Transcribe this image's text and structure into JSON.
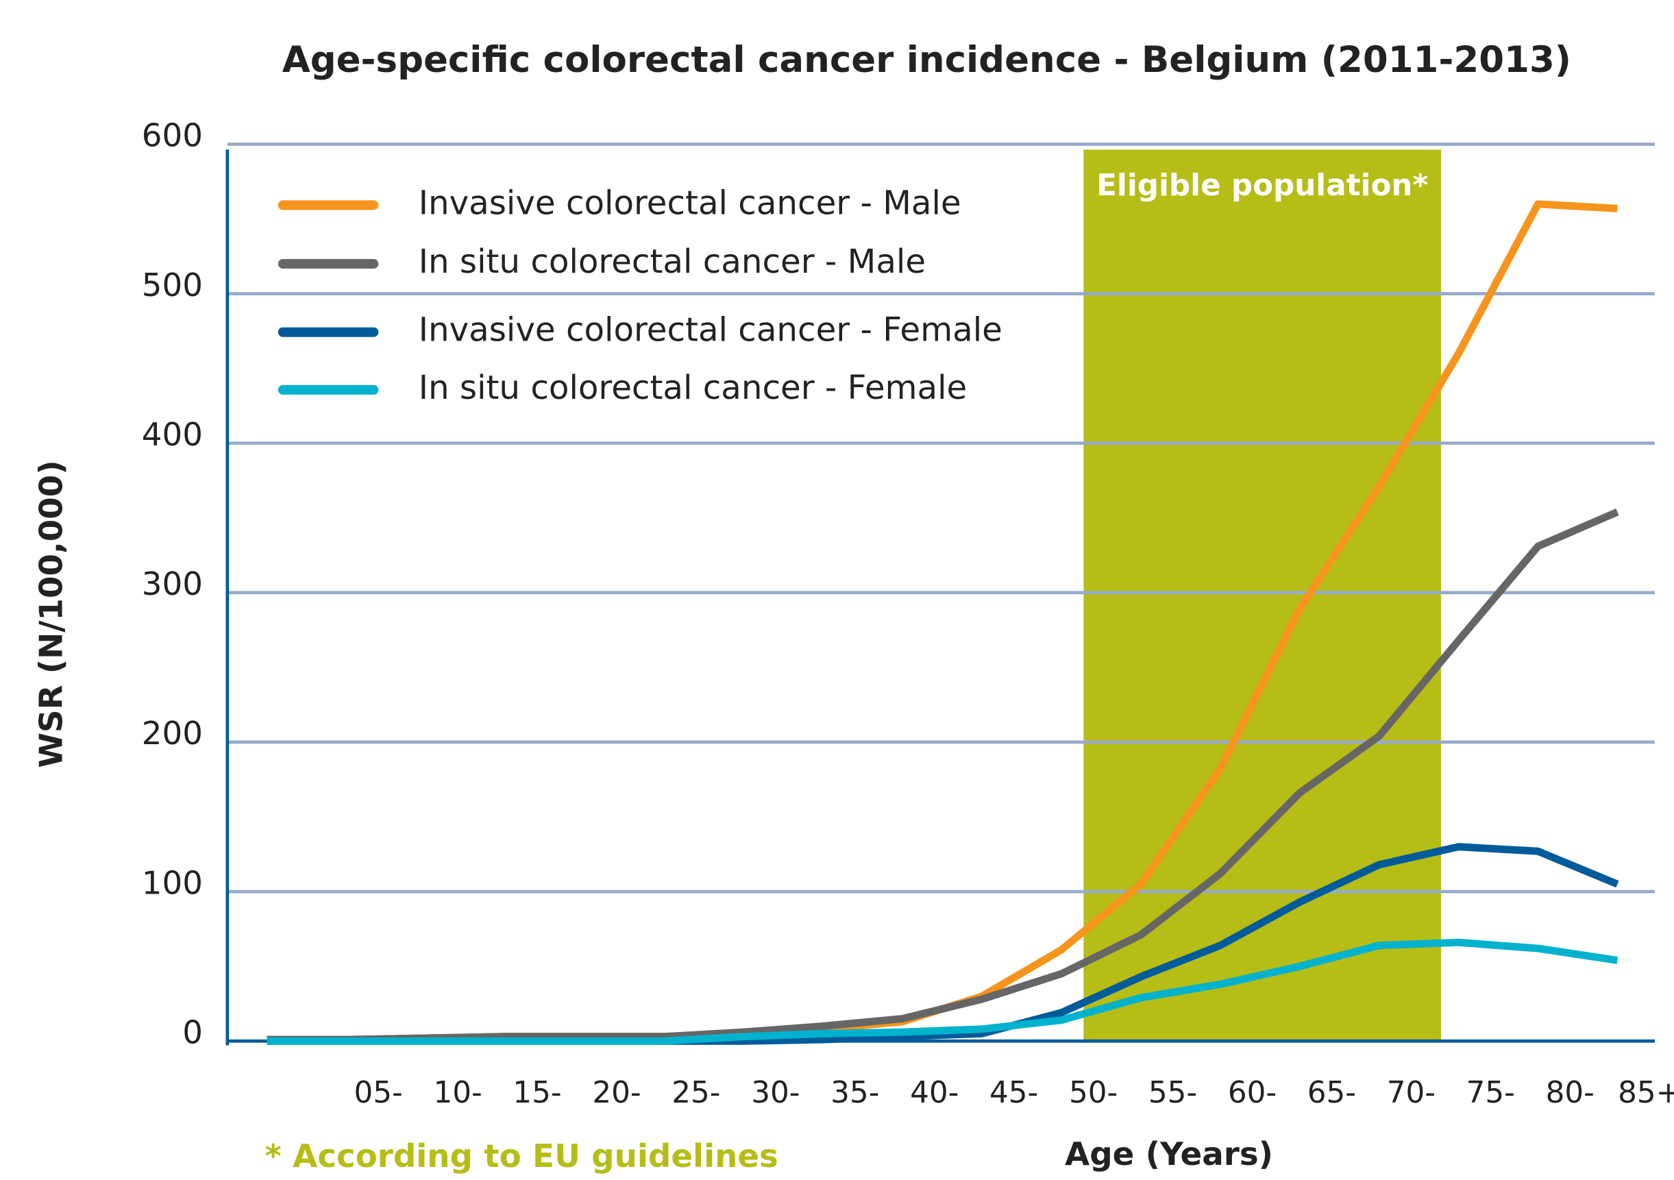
{
  "chart_data": {
    "type": "line",
    "title": "Age-specific colorectal cancer incidence - Belgium (2011-2013)",
    "xlabel": "Age (Years)",
    "ylabel": "WSR (N/100,000)",
    "categories": [
      null,
      "05-",
      "10-",
      "15-",
      "20-",
      "25-",
      "30-",
      "35-",
      "40-",
      "45-",
      "50-",
      "55-",
      "60-",
      "65-",
      "70-",
      "75-",
      "80-",
      "85+"
    ],
    "series": [
      {
        "name": "Invasive colorectal cancer - Male",
        "color": "#f7941d",
        "values": [
          1,
          1,
          2,
          3,
          3,
          3,
          5,
          8,
          13,
          30,
          61,
          105,
          182,
          289,
          371,
          460,
          560,
          557
        ]
      },
      {
        "name": "In situ colorectal cancer - Male",
        "color": "#666666",
        "values": [
          1,
          1,
          2,
          3,
          3,
          3,
          6,
          10,
          15,
          28,
          45,
          71,
          112,
          166,
          204,
          268,
          331,
          354
        ]
      },
      {
        "name": "Invasive colorectal cancer - Female",
        "color": "#005b9a",
        "values": [
          0,
          0,
          0,
          0,
          0,
          0,
          0,
          1,
          3,
          5,
          19,
          43,
          64,
          93,
          118,
          130,
          127,
          105
        ]
      },
      {
        "name": "In situ colorectal cancer - Female",
        "color": "#00b2cd",
        "values": [
          0,
          0,
          0,
          0,
          0,
          0,
          3,
          5,
          6,
          8,
          14,
          29,
          38,
          50,
          64,
          66,
          62,
          54
        ]
      }
    ],
    "ylim": [
      0,
      600
    ],
    "yticks": [
      0,
      100,
      200,
      300,
      400,
      500,
      600
    ],
    "grid": true,
    "highlight": {
      "label": "Eligible population*",
      "from": "50-",
      "to": "70-",
      "color": "#b5bd16"
    },
    "footnote": "* According to EU guidelines"
  }
}
